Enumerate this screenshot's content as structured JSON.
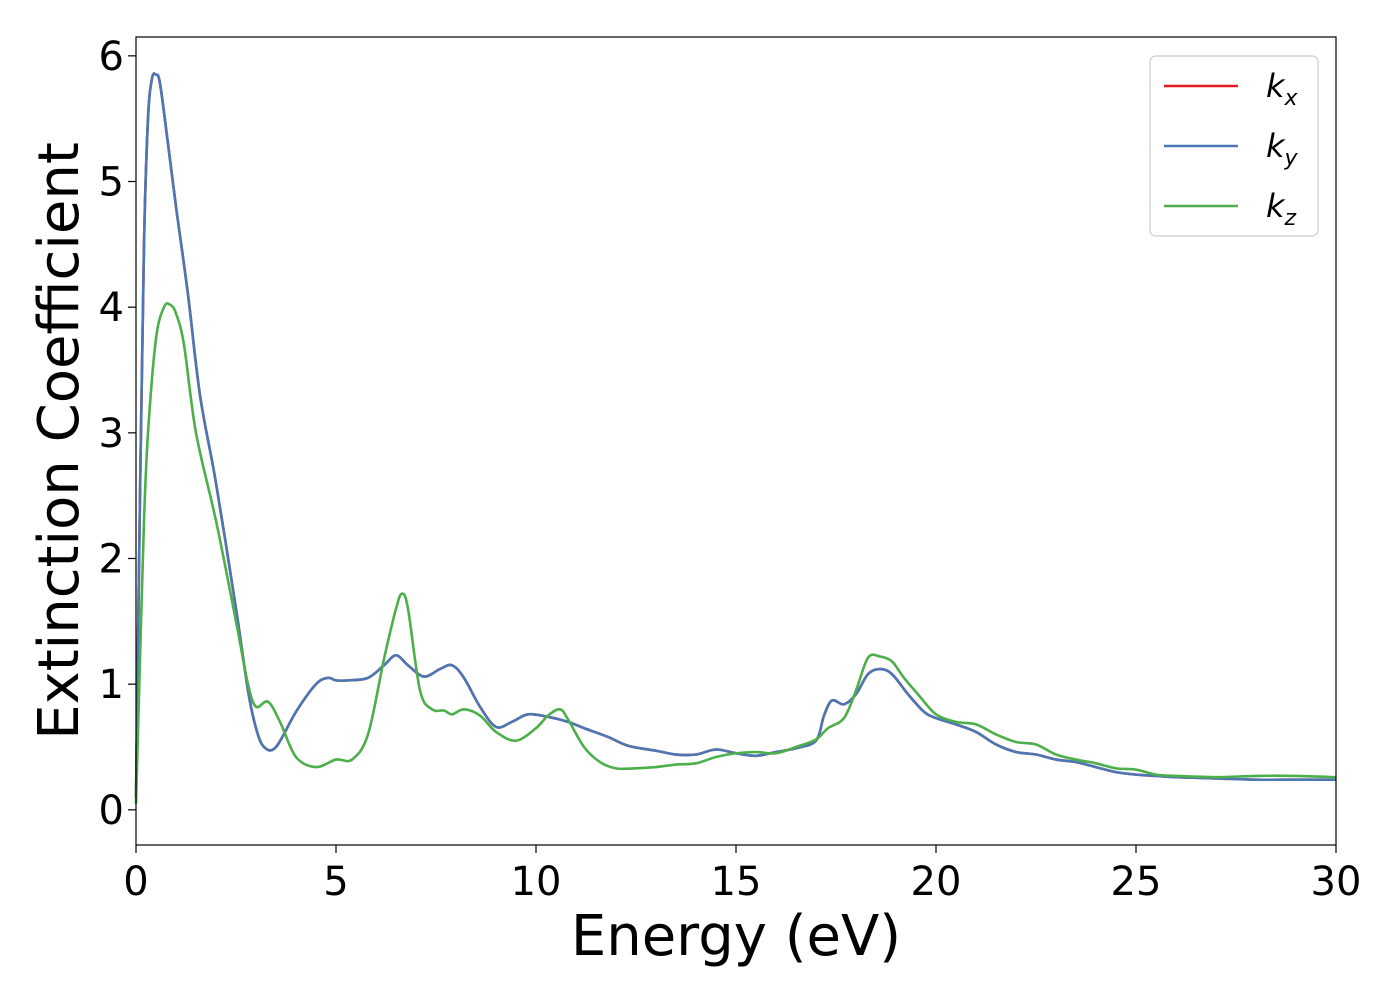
{
  "chart_data": {
    "type": "line",
    "title": "",
    "xlabel": "Energy (eV)",
    "ylabel": "Extinction Coefficient",
    "xlim": [
      0,
      30
    ],
    "ylim": [
      -0.28,
      6.15
    ],
    "xticks": [
      "0",
      "5",
      "10",
      "15",
      "20",
      "25",
      "30"
    ],
    "yticks": [
      "0",
      "1",
      "2",
      "3",
      "4",
      "5",
      "6"
    ],
    "grid": false,
    "legend_position": "top-right",
    "series": [
      {
        "name": "k_x",
        "label_base": "k",
        "label_sub": "x",
        "color": "#e41a1c",
        "x": [
          0,
          0.1,
          0.2,
          0.3,
          0.4,
          0.5,
          0.6,
          0.8,
          1.0,
          1.3,
          1.6,
          2.0,
          2.5,
          2.8,
          3.0,
          3.2,
          3.5,
          4.0,
          4.5,
          4.8,
          5.0,
          5.3,
          5.8,
          6.2,
          6.5,
          6.8,
          7.2,
          7.6,
          7.9,
          8.2,
          8.6,
          9.0,
          9.4,
          9.8,
          10.3,
          10.8,
          11.2,
          11.8,
          12.3,
          13.0,
          13.5,
          14.0,
          14.5,
          15.0,
          15.5,
          16.0,
          16.5,
          17.0,
          17.2,
          17.4,
          17.7,
          18.0,
          18.3,
          18.6,
          18.9,
          19.3,
          19.7,
          20.0,
          20.5,
          21.0,
          21.5,
          22.0,
          22.5,
          23.0,
          23.5,
          24.0,
          24.5,
          25.0,
          25.5,
          26.0,
          27.0,
          28.0,
          29.0,
          30.0
        ],
        "y": [
          0.1,
          2.5,
          4.5,
          5.5,
          5.82,
          5.85,
          5.78,
          5.3,
          4.8,
          4.1,
          3.3,
          2.6,
          1.6,
          0.95,
          0.65,
          0.5,
          0.5,
          0.78,
          1.0,
          1.05,
          1.03,
          1.03,
          1.05,
          1.15,
          1.23,
          1.15,
          1.06,
          1.12,
          1.15,
          1.05,
          0.82,
          0.66,
          0.7,
          0.76,
          0.74,
          0.7,
          0.65,
          0.58,
          0.51,
          0.47,
          0.44,
          0.44,
          0.48,
          0.45,
          0.43,
          0.46,
          0.49,
          0.55,
          0.75,
          0.87,
          0.84,
          0.92,
          1.08,
          1.12,
          1.08,
          0.92,
          0.78,
          0.73,
          0.68,
          0.62,
          0.52,
          0.46,
          0.44,
          0.4,
          0.38,
          0.34,
          0.3,
          0.28,
          0.27,
          0.26,
          0.25,
          0.24,
          0.24,
          0.24
        ]
      },
      {
        "name": "k_y",
        "label_base": "k",
        "label_sub": "y",
        "color": "#4a78b4",
        "x": [
          0,
          0.1,
          0.2,
          0.3,
          0.4,
          0.5,
          0.6,
          0.8,
          1.0,
          1.3,
          1.6,
          2.0,
          2.5,
          2.8,
          3.0,
          3.2,
          3.5,
          4.0,
          4.5,
          4.8,
          5.0,
          5.3,
          5.8,
          6.2,
          6.5,
          6.8,
          7.2,
          7.6,
          7.9,
          8.2,
          8.6,
          9.0,
          9.4,
          9.8,
          10.3,
          10.8,
          11.2,
          11.8,
          12.3,
          13.0,
          13.5,
          14.0,
          14.5,
          15.0,
          15.5,
          16.0,
          16.5,
          17.0,
          17.2,
          17.4,
          17.7,
          18.0,
          18.3,
          18.6,
          18.9,
          19.3,
          19.7,
          20.0,
          20.5,
          21.0,
          21.5,
          22.0,
          22.5,
          23.0,
          23.5,
          24.0,
          24.5,
          25.0,
          25.5,
          26.0,
          27.0,
          28.0,
          29.0,
          30.0
        ],
        "y": [
          0.1,
          2.5,
          4.5,
          5.5,
          5.82,
          5.85,
          5.78,
          5.3,
          4.8,
          4.1,
          3.3,
          2.6,
          1.6,
          0.95,
          0.65,
          0.5,
          0.5,
          0.78,
          1.0,
          1.05,
          1.03,
          1.03,
          1.05,
          1.15,
          1.23,
          1.15,
          1.06,
          1.12,
          1.15,
          1.05,
          0.82,
          0.66,
          0.7,
          0.76,
          0.74,
          0.7,
          0.65,
          0.58,
          0.51,
          0.47,
          0.44,
          0.44,
          0.48,
          0.45,
          0.43,
          0.46,
          0.49,
          0.55,
          0.75,
          0.87,
          0.84,
          0.92,
          1.08,
          1.12,
          1.08,
          0.92,
          0.78,
          0.73,
          0.68,
          0.62,
          0.52,
          0.46,
          0.44,
          0.4,
          0.38,
          0.34,
          0.3,
          0.28,
          0.27,
          0.26,
          0.25,
          0.24,
          0.24,
          0.24
        ]
      },
      {
        "name": "k_z",
        "label_base": "k",
        "label_sub": "z",
        "color": "#4daf4a",
        "x": [
          0,
          0.1,
          0.2,
          0.3,
          0.5,
          0.7,
          0.85,
          1.0,
          1.2,
          1.5,
          2.0,
          2.5,
          2.8,
          3.0,
          3.3,
          3.6,
          4.0,
          4.5,
          5.0,
          5.4,
          5.8,
          6.2,
          6.5,
          6.65,
          6.8,
          7.1,
          7.4,
          7.7,
          7.9,
          8.2,
          8.6,
          9.0,
          9.5,
          10.0,
          10.3,
          10.6,
          10.8,
          11.2,
          11.6,
          12.0,
          12.5,
          13.0,
          13.5,
          14.0,
          14.5,
          15.0,
          15.5,
          16.0,
          16.5,
          17.0,
          17.3,
          17.7,
          18.0,
          18.3,
          18.6,
          18.9,
          19.2,
          19.6,
          20.0,
          20.5,
          21.0,
          21.5,
          22.0,
          22.5,
          23.0,
          23.5,
          24.0,
          24.5,
          25.0,
          25.5,
          26.0,
          27.0,
          28.0,
          29.0,
          30.0
        ],
        "y": [
          0.05,
          1.2,
          2.3,
          3.0,
          3.75,
          4.0,
          4.02,
          3.95,
          3.7,
          3.0,
          2.3,
          1.5,
          1.0,
          0.82,
          0.86,
          0.7,
          0.42,
          0.34,
          0.4,
          0.4,
          0.6,
          1.2,
          1.6,
          1.72,
          1.6,
          0.95,
          0.8,
          0.79,
          0.76,
          0.8,
          0.75,
          0.62,
          0.55,
          0.65,
          0.75,
          0.8,
          0.72,
          0.5,
          0.38,
          0.33,
          0.33,
          0.34,
          0.36,
          0.37,
          0.42,
          0.45,
          0.46,
          0.45,
          0.5,
          0.56,
          0.65,
          0.73,
          0.95,
          1.21,
          1.22,
          1.18,
          1.05,
          0.9,
          0.76,
          0.7,
          0.68,
          0.6,
          0.54,
          0.52,
          0.44,
          0.4,
          0.37,
          0.33,
          0.32,
          0.28,
          0.27,
          0.26,
          0.27,
          0.27,
          0.26
        ]
      }
    ]
  }
}
